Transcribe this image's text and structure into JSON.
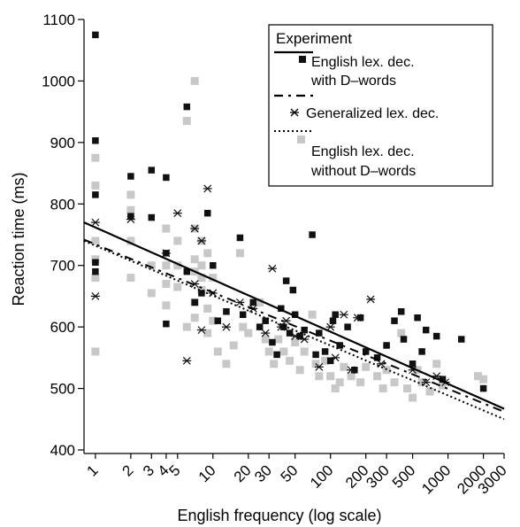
{
  "chart_data": {
    "type": "scatter",
    "title": "",
    "xlabel": "English frequency (log scale)",
    "ylabel": "Reaction time (ms)",
    "x_scale": "log",
    "xlim": [
      0.8,
      3000
    ],
    "ylim": [
      400,
      1100
    ],
    "grid": false,
    "legend_position": "top-right",
    "legend_title": "Experiment",
    "y_ticks": [
      400,
      500,
      600,
      700,
      800,
      900,
      1000,
      1100
    ],
    "x_ticks": [
      1,
      2,
      3,
      4,
      5,
      10,
      20,
      30,
      50,
      100,
      200,
      300,
      500,
      1000,
      2000,
      3000
    ],
    "y_tick_labels": [
      "400",
      "500",
      "600",
      "700",
      "800",
      "900",
      "1000",
      "1100"
    ],
    "x_tick_labels": [
      "1",
      "2",
      "3",
      "4",
      "5",
      "10",
      "20",
      "30",
      "50",
      "100",
      "200",
      "300",
      "500",
      "1000",
      "2000",
      "3000"
    ],
    "series": [
      {
        "name": "English lex. dec. with D–words",
        "marker": "square",
        "color": "#111111",
        "line_style": "solid",
        "fit_line": [
          [
            0.8,
            770
          ],
          [
            3000,
            467
          ]
        ],
        "points": [
          [
            1,
            1075
          ],
          [
            1,
            903
          ],
          [
            1,
            815
          ],
          [
            1,
            705
          ],
          [
            1,
            690
          ],
          [
            2,
            845
          ],
          [
            2,
            780
          ],
          [
            3,
            855
          ],
          [
            3,
            778
          ],
          [
            4,
            843
          ],
          [
            4,
            605
          ],
          [
            4,
            720
          ],
          [
            6,
            958
          ],
          [
            6,
            690
          ],
          [
            7,
            640
          ],
          [
            8,
            655
          ],
          [
            9,
            785
          ],
          [
            10,
            700
          ],
          [
            11,
            610
          ],
          [
            13,
            625
          ],
          [
            17,
            745
          ],
          [
            18,
            620
          ],
          [
            22,
            640
          ],
          [
            25,
            600
          ],
          [
            28,
            610
          ],
          [
            32,
            575
          ],
          [
            35,
            555
          ],
          [
            38,
            630
          ],
          [
            40,
            600
          ],
          [
            42,
            675
          ],
          [
            45,
            590
          ],
          [
            48,
            660
          ],
          [
            50,
            620
          ],
          [
            55,
            585
          ],
          [
            60,
            595
          ],
          [
            70,
            750
          ],
          [
            75,
            555
          ],
          [
            80,
            590
          ],
          [
            90,
            560
          ],
          [
            100,
            545
          ],
          [
            105,
            610
          ],
          [
            110,
            620
          ],
          [
            120,
            570
          ],
          [
            140,
            600
          ],
          [
            160,
            530
          ],
          [
            180,
            615
          ],
          [
            200,
            560
          ],
          [
            250,
            550
          ],
          [
            300,
            570
          ],
          [
            350,
            610
          ],
          [
            400,
            625
          ],
          [
            420,
            580
          ],
          [
            500,
            540
          ],
          [
            550,
            615
          ],
          [
            600,
            560
          ],
          [
            650,
            595
          ],
          [
            800,
            585
          ],
          [
            900,
            515
          ],
          [
            1300,
            580
          ],
          [
            2000,
            500
          ]
        ]
      },
      {
        "name": "Generalized lex. dec.",
        "marker": "asterisk",
        "color": "#111111",
        "line_style": "dashed",
        "fit_line": [
          [
            0.8,
            742
          ],
          [
            3000,
            462
          ]
        ],
        "points": [
          [
            1,
            770
          ],
          [
            1,
            650
          ],
          [
            2,
            775
          ],
          [
            4,
            720
          ],
          [
            5,
            785
          ],
          [
            6,
            545
          ],
          [
            7,
            760
          ],
          [
            7,
            670
          ],
          [
            8,
            595
          ],
          [
            8,
            740
          ],
          [
            9,
            825
          ],
          [
            10,
            655
          ],
          [
            13,
            600
          ],
          [
            17,
            640
          ],
          [
            22,
            630
          ],
          [
            28,
            590
          ],
          [
            32,
            695
          ],
          [
            38,
            600
          ],
          [
            42,
            610
          ],
          [
            50,
            585
          ],
          [
            60,
            580
          ],
          [
            80,
            535
          ],
          [
            100,
            600
          ],
          [
            110,
            550
          ],
          [
            130,
            620
          ],
          [
            150,
            530
          ],
          [
            170,
            615
          ],
          [
            220,
            645
          ],
          [
            270,
            540
          ],
          [
            500,
            530
          ],
          [
            650,
            510
          ],
          [
            800,
            520
          ],
          [
            950,
            510
          ]
        ]
      },
      {
        "name": "English lex. dec. without D–words",
        "marker": "square",
        "color": "#c8c8c8",
        "line_style": "dotted",
        "fit_line": [
          [
            0.8,
            740
          ],
          [
            3000,
            450
          ]
        ],
        "points": [
          [
            1,
            875
          ],
          [
            1,
            830
          ],
          [
            1,
            740
          ],
          [
            1,
            710
          ],
          [
            1,
            680
          ],
          [
            1,
            560
          ],
          [
            2,
            815
          ],
          [
            2,
            790
          ],
          [
            2,
            740
          ],
          [
            2,
            680
          ],
          [
            3,
            700
          ],
          [
            3,
            655
          ],
          [
            4,
            760
          ],
          [
            4,
            700
          ],
          [
            4,
            670
          ],
          [
            4,
            635
          ],
          [
            5,
            740
          ],
          [
            5,
            700
          ],
          [
            5,
            665
          ],
          [
            6,
            935
          ],
          [
            6,
            600
          ],
          [
            7,
            1000
          ],
          [
            7,
            760
          ],
          [
            7,
            710
          ],
          [
            7,
            690
          ],
          [
            7,
            640
          ],
          [
            7,
            615
          ],
          [
            8,
            740
          ],
          [
            8,
            700
          ],
          [
            8,
            680
          ],
          [
            8,
            660
          ],
          [
            9,
            720
          ],
          [
            9,
            630
          ],
          [
            9,
            590
          ],
          [
            10,
            680
          ],
          [
            10,
            610
          ],
          [
            11,
            560
          ],
          [
            13,
            540
          ],
          [
            15,
            570
          ],
          [
            17,
            720
          ],
          [
            18,
            600
          ],
          [
            20,
            590
          ],
          [
            25,
            640
          ],
          [
            28,
            580
          ],
          [
            30,
            560
          ],
          [
            33,
            540
          ],
          [
            36,
            580
          ],
          [
            40,
            560
          ],
          [
            45,
            545
          ],
          [
            50,
            575
          ],
          [
            55,
            530
          ],
          [
            60,
            560
          ],
          [
            70,
            620
          ],
          [
            75,
            540
          ],
          [
            80,
            520
          ],
          [
            90,
            545
          ],
          [
            100,
            520
          ],
          [
            110,
            500
          ],
          [
            120,
            510
          ],
          [
            130,
            535
          ],
          [
            150,
            520
          ],
          [
            180,
            510
          ],
          [
            200,
            535
          ],
          [
            250,
            520
          ],
          [
            280,
            500
          ],
          [
            300,
            530
          ],
          [
            350,
            510
          ],
          [
            400,
            590
          ],
          [
            450,
            500
          ],
          [
            500,
            485
          ],
          [
            550,
            530
          ],
          [
            600,
            510
          ],
          [
            700,
            495
          ],
          [
            800,
            540
          ],
          [
            900,
            505
          ],
          [
            1800,
            520
          ],
          [
            2000,
            515
          ]
        ]
      }
    ]
  }
}
